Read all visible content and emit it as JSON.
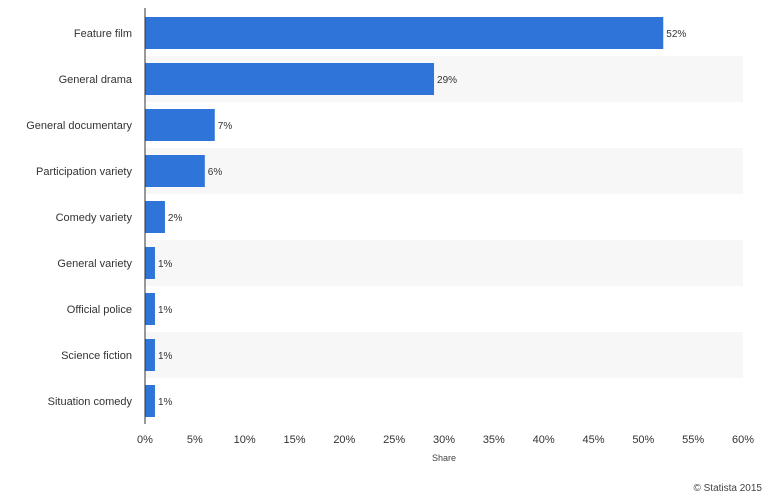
{
  "chart_data": {
    "type": "bar",
    "orientation": "horizontal",
    "categories": [
      "Feature film",
      "General drama",
      "General documentary",
      "Participation variety",
      "Comedy variety",
      "General variety",
      "Official police",
      "Science fiction",
      "Situation comedy"
    ],
    "values": [
      52,
      29,
      7,
      6,
      2,
      1,
      1,
      1,
      1
    ],
    "value_labels": [
      "52%",
      "29%",
      "7%",
      "6%",
      "2%",
      "1%",
      "1%",
      "1%",
      "1%"
    ],
    "xlabel": "Share",
    "ylabel": "",
    "xlim": [
      0,
      60
    ],
    "ticks": [
      "0%",
      "5%",
      "10%",
      "15%",
      "20%",
      "25%",
      "30%",
      "35%",
      "40%",
      "45%",
      "50%",
      "55%",
      "60%"
    ],
    "grid": false,
    "legend": "none",
    "bar_color": "#2e74d9",
    "stripe_color": "#f7f7f7"
  },
  "credit": "© Statista 2015"
}
